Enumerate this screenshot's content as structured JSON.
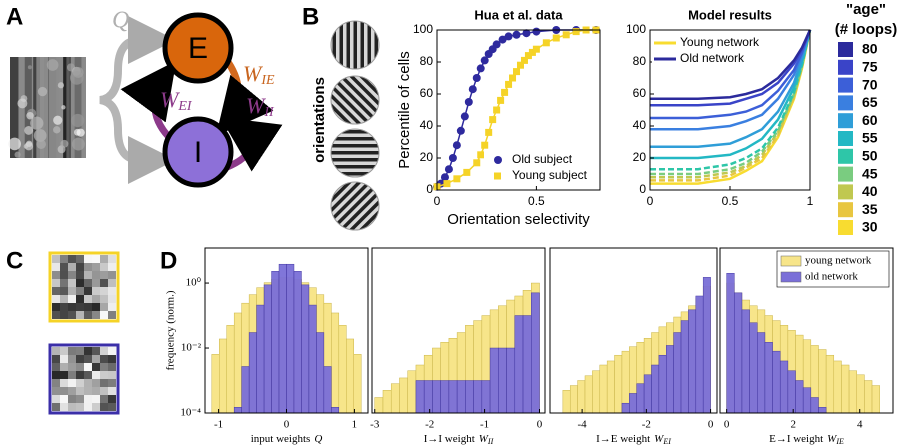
{
  "panel_labels": [
    "A",
    "B",
    "C",
    "D"
  ],
  "diagram": {
    "nodes": [
      {
        "label": "E"
      },
      {
        "label": "I"
      }
    ],
    "edges": [
      {
        "symbol": "Q"
      },
      {
        "symbol": "W",
        "subscript": "IE"
      },
      {
        "symbol": "W",
        "subscript": "EI"
      },
      {
        "symbol": "W",
        "subscript": "II"
      }
    ]
  },
  "stimuli_label": "orientations",
  "age_scale": {
    "title": [
      "\"age\"",
      "(# loops)"
    ],
    "values": [
      80,
      75,
      70,
      65,
      60,
      55,
      50,
      45,
      40,
      35,
      30
    ],
    "colors": [
      "#2b2a9c",
      "#3a44c8",
      "#3c5fd8",
      "#3a7fe0",
      "#2f9ed8",
      "#23b8c4",
      "#2ec6a8",
      "#7acc80",
      "#c0c850",
      "#e8c640",
      "#f8dc30"
    ]
  },
  "chart_data": [
    {
      "type": "line",
      "title": "Hua et al. data",
      "xlabel": "Orientation selectivity",
      "ylabel": "Percentile of cells",
      "xlim": [
        0,
        0.82
      ],
      "ylim": [
        0,
        100
      ],
      "xticks": [
        0,
        0.5
      ],
      "yticks": [
        0,
        20,
        40,
        60,
        80,
        100
      ],
      "legend": "lower right",
      "series": [
        {
          "name": "Old subject",
          "color": "#2e2a9e",
          "marker": "circle",
          "x": [
            0,
            0.02,
            0.04,
            0.06,
            0.08,
            0.1,
            0.12,
            0.14,
            0.16,
            0.18,
            0.2,
            0.22,
            0.24,
            0.26,
            0.28,
            0.3,
            0.33,
            0.36,
            0.4,
            0.45,
            0.5,
            0.6,
            0.7,
            0.8
          ],
          "values": [
            2,
            4,
            8,
            13,
            20,
            28,
            37,
            46,
            55,
            63,
            70,
            76,
            81,
            85,
            88,
            91,
            94,
            96,
            97,
            98,
            99,
            100,
            100,
            100
          ]
        },
        {
          "name": "Young subject",
          "color": "#f5d327",
          "marker": "square",
          "x": [
            0,
            0.05,
            0.1,
            0.15,
            0.2,
            0.22,
            0.24,
            0.26,
            0.28,
            0.3,
            0.32,
            0.34,
            0.36,
            0.38,
            0.4,
            0.42,
            0.44,
            0.46,
            0.48,
            0.5,
            0.55,
            0.6,
            0.65,
            0.7,
            0.75,
            0.8
          ],
          "values": [
            2,
            4,
            7,
            11,
            17,
            22,
            28,
            36,
            44,
            50,
            56,
            61,
            66,
            70,
            74,
            78,
            81,
            84,
            86,
            88,
            92,
            95,
            97,
            99,
            100,
            100
          ]
        }
      ]
    },
    {
      "type": "line",
      "title": "Model results",
      "xlim": [
        0,
        1
      ],
      "ylim": [
        0,
        100
      ],
      "xticks": [
        0,
        0.5,
        1
      ],
      "yticks": [
        0,
        20,
        40,
        60,
        80,
        100
      ],
      "legend": "upper left",
      "x": [
        0,
        0.3,
        0.5,
        0.6,
        0.7,
        0.8,
        0.9,
        0.95,
        1
      ],
      "series": [
        {
          "name": "Young network",
          "color": "#f8dc30",
          "values": [
            4,
            4,
            7,
            12,
            18,
            33,
            57,
            76,
            100
          ]
        },
        {
          "color": "#e8c640",
          "dash": true,
          "values": [
            6,
            6,
            9,
            14,
            20,
            34,
            58,
            77,
            100
          ]
        },
        {
          "color": "#c0c850",
          "dash": true,
          "values": [
            8,
            8,
            11,
            15,
            22,
            36,
            59,
            77,
            100
          ]
        },
        {
          "color": "#7acc80",
          "dash": true,
          "values": [
            10,
            10,
            13,
            17,
            24,
            37,
            60,
            78,
            100
          ]
        },
        {
          "color": "#2ec6a8",
          "dash": true,
          "values": [
            13,
            13,
            16,
            20,
            26,
            39,
            61,
            78,
            100
          ]
        },
        {
          "color": "#23b8c4",
          "values": [
            20,
            20,
            22,
            26,
            32,
            44,
            64,
            80,
            100
          ]
        },
        {
          "color": "#2f9ed8",
          "values": [
            27,
            27,
            29,
            33,
            38,
            49,
            67,
            82,
            100
          ]
        },
        {
          "color": "#3a7fe0",
          "values": [
            38,
            38,
            40,
            43,
            47,
            57,
            72,
            85,
            100
          ]
        },
        {
          "color": "#3c5fd8",
          "values": [
            45,
            45,
            47,
            49,
            53,
            62,
            75,
            86,
            100
          ]
        },
        {
          "color": "#3a44c8",
          "values": [
            53,
            53,
            54,
            57,
            60,
            67,
            79,
            88,
            100
          ]
        },
        {
          "name": "Old network",
          "color": "#2b2a9c",
          "values": [
            57,
            57,
            58,
            60,
            63,
            70,
            81,
            89,
            100
          ]
        }
      ]
    },
    {
      "type": "histogram",
      "xlabel": {
        "text": "input weights",
        "symbol": "Q"
      },
      "ylabel": "frequency (norm.)",
      "ylog": true,
      "xlim": [
        -1.2,
        1.2
      ],
      "ylim": [
        0.0001,
        12
      ],
      "xticks": [
        -1,
        0,
        1
      ],
      "yticks": [
        {
          "value": 0.0001,
          "label": "10⁻⁴"
        },
        {
          "value": 0.01,
          "label": "10⁻²"
        },
        {
          "value": 1,
          "label": "10⁰"
        }
      ],
      "bins": [
        -1.1,
        -0.99,
        -0.88,
        -0.77,
        -0.66,
        -0.55,
        -0.44,
        -0.33,
        -0.22,
        -0.11,
        0,
        0.11,
        0.22,
        0.33,
        0.44,
        0.55,
        0.66,
        0.77,
        0.88,
        0.99,
        1.1
      ],
      "series": [
        {
          "color": "#f7e58a",
          "values": [
            0.0064,
            0.019,
            0.05,
            0.12,
            0.24,
            0.44,
            0.72,
            1.03,
            1.3,
            1.48,
            1.48,
            1.3,
            1.03,
            0.72,
            0.44,
            0.24,
            0.12,
            0.05,
            0.019,
            0.0064
          ]
        },
        {
          "color": "#7a6fd8",
          "values": [
            null,
            null,
            null,
            0.00015,
            0.0027,
            0.03,
            0.21,
            0.88,
            2.3,
            3.8,
            3.8,
            2.3,
            0.88,
            0.21,
            0.03,
            0.0027,
            0.00015,
            null,
            null,
            null
          ]
        }
      ]
    },
    {
      "type": "histogram",
      "xlabel": {
        "text": "I→I weight",
        "symbol": "W",
        "subscript": "II"
      },
      "ylog": true,
      "xlim": [
        -3.05,
        0.1
      ],
      "ylim": [
        0.0001,
        12
      ],
      "xticks": [
        -3,
        -2,
        -1,
        0
      ],
      "bins": [
        -3,
        -2.85,
        -2.7,
        -2.55,
        -2.4,
        -2.25,
        -2.1,
        -1.95,
        -1.8,
        -1.65,
        -1.5,
        -1.35,
        -1.2,
        -1.05,
        -0.9,
        -0.75,
        -0.6,
        -0.45,
        -0.3,
        -0.15,
        0
      ],
      "series": [
        {
          "color": "#f7e58a",
          "values": [
            0.0003,
            0.0005,
            0.0008,
            0.0012,
            0.002,
            0.003,
            0.006,
            0.01,
            0.015,
            0.02,
            0.03,
            0.05,
            0.07,
            0.1,
            0.15,
            0.2,
            0.3,
            0.4,
            0.6,
            1.0
          ]
        },
        {
          "color": "#7a6fd8",
          "values": [
            null,
            null,
            null,
            null,
            null,
            0.001,
            0.001,
            0.001,
            0.001,
            0.001,
            0.001,
            0.001,
            0.001,
            0.001,
            0.01,
            0.01,
            0.01,
            0.1,
            0.1,
            0.5
          ]
        }
      ]
    },
    {
      "type": "histogram",
      "xlabel": {
        "text": "I→E weight",
        "symbol": "W",
        "subscript": "EI"
      },
      "ylog": true,
      "xlim": [
        -5,
        0.2
      ],
      "ylim": [
        0.0001,
        12
      ],
      "xticks": [
        -4,
        -2,
        0
      ],
      "bins": [
        -4.6,
        -4.37,
        -4.14,
        -3.91,
        -3.68,
        -3.45,
        -3.22,
        -2.99,
        -2.76,
        -2.53,
        -2.3,
        -2.07,
        -1.84,
        -1.61,
        -1.38,
        -1.15,
        -0.92,
        -0.69,
        -0.46,
        -0.23,
        0
      ],
      "series": [
        {
          "color": "#f7e58a",
          "values": [
            0.0005,
            0.0007,
            0.001,
            0.0014,
            0.002,
            0.003,
            0.004,
            0.006,
            0.008,
            0.011,
            0.015,
            0.02,
            0.03,
            0.045,
            0.06,
            0.09,
            0.13,
            0.2,
            0.35,
            0.8
          ]
        },
        {
          "color": "#7a6fd8",
          "values": [
            null,
            null,
            null,
            null,
            null,
            null,
            null,
            0.0001,
            0.0002,
            0.0004,
            0.0008,
            0.0015,
            0.003,
            0.006,
            0.012,
            0.03,
            0.07,
            0.15,
            0.4,
            1.5
          ]
        }
      ]
    },
    {
      "type": "histogram",
      "xlabel": {
        "text": "E→I weight",
        "symbol": "W",
        "subscript": "IE"
      },
      "ylog": true,
      "legend": "upper right",
      "xlim": [
        -0.2,
        5
      ],
      "ylim": [
        0.0001,
        12
      ],
      "xticks": [
        0,
        2,
        4
      ],
      "bins": [
        0,
        0.23,
        0.46,
        0.69,
        0.92,
        1.15,
        1.38,
        1.61,
        1.84,
        2.07,
        2.3,
        2.53,
        2.76,
        2.99,
        3.22,
        3.45,
        3.68,
        3.91,
        4.14,
        4.37,
        4.6
      ],
      "series": [
        {
          "name": "young network",
          "color": "#f7e58a",
          "values": [
            1.0,
            0.5,
            0.3,
            0.2,
            0.15,
            0.1,
            0.07,
            0.05,
            0.035,
            0.025,
            0.018,
            0.012,
            0.009,
            0.006,
            0.004,
            0.003,
            0.002,
            0.0015,
            0.001,
            0.0007
          ]
        },
        {
          "name": "old network",
          "color": "#7a6fd8",
          "values": [
            2.0,
            0.5,
            0.15,
            0.06,
            0.03,
            0.015,
            0.008,
            0.004,
            0.002,
            0.001,
            0.0006,
            0.0003,
            0.00015,
            null,
            null,
            null,
            null,
            null,
            null,
            null
          ]
        }
      ]
    }
  ]
}
